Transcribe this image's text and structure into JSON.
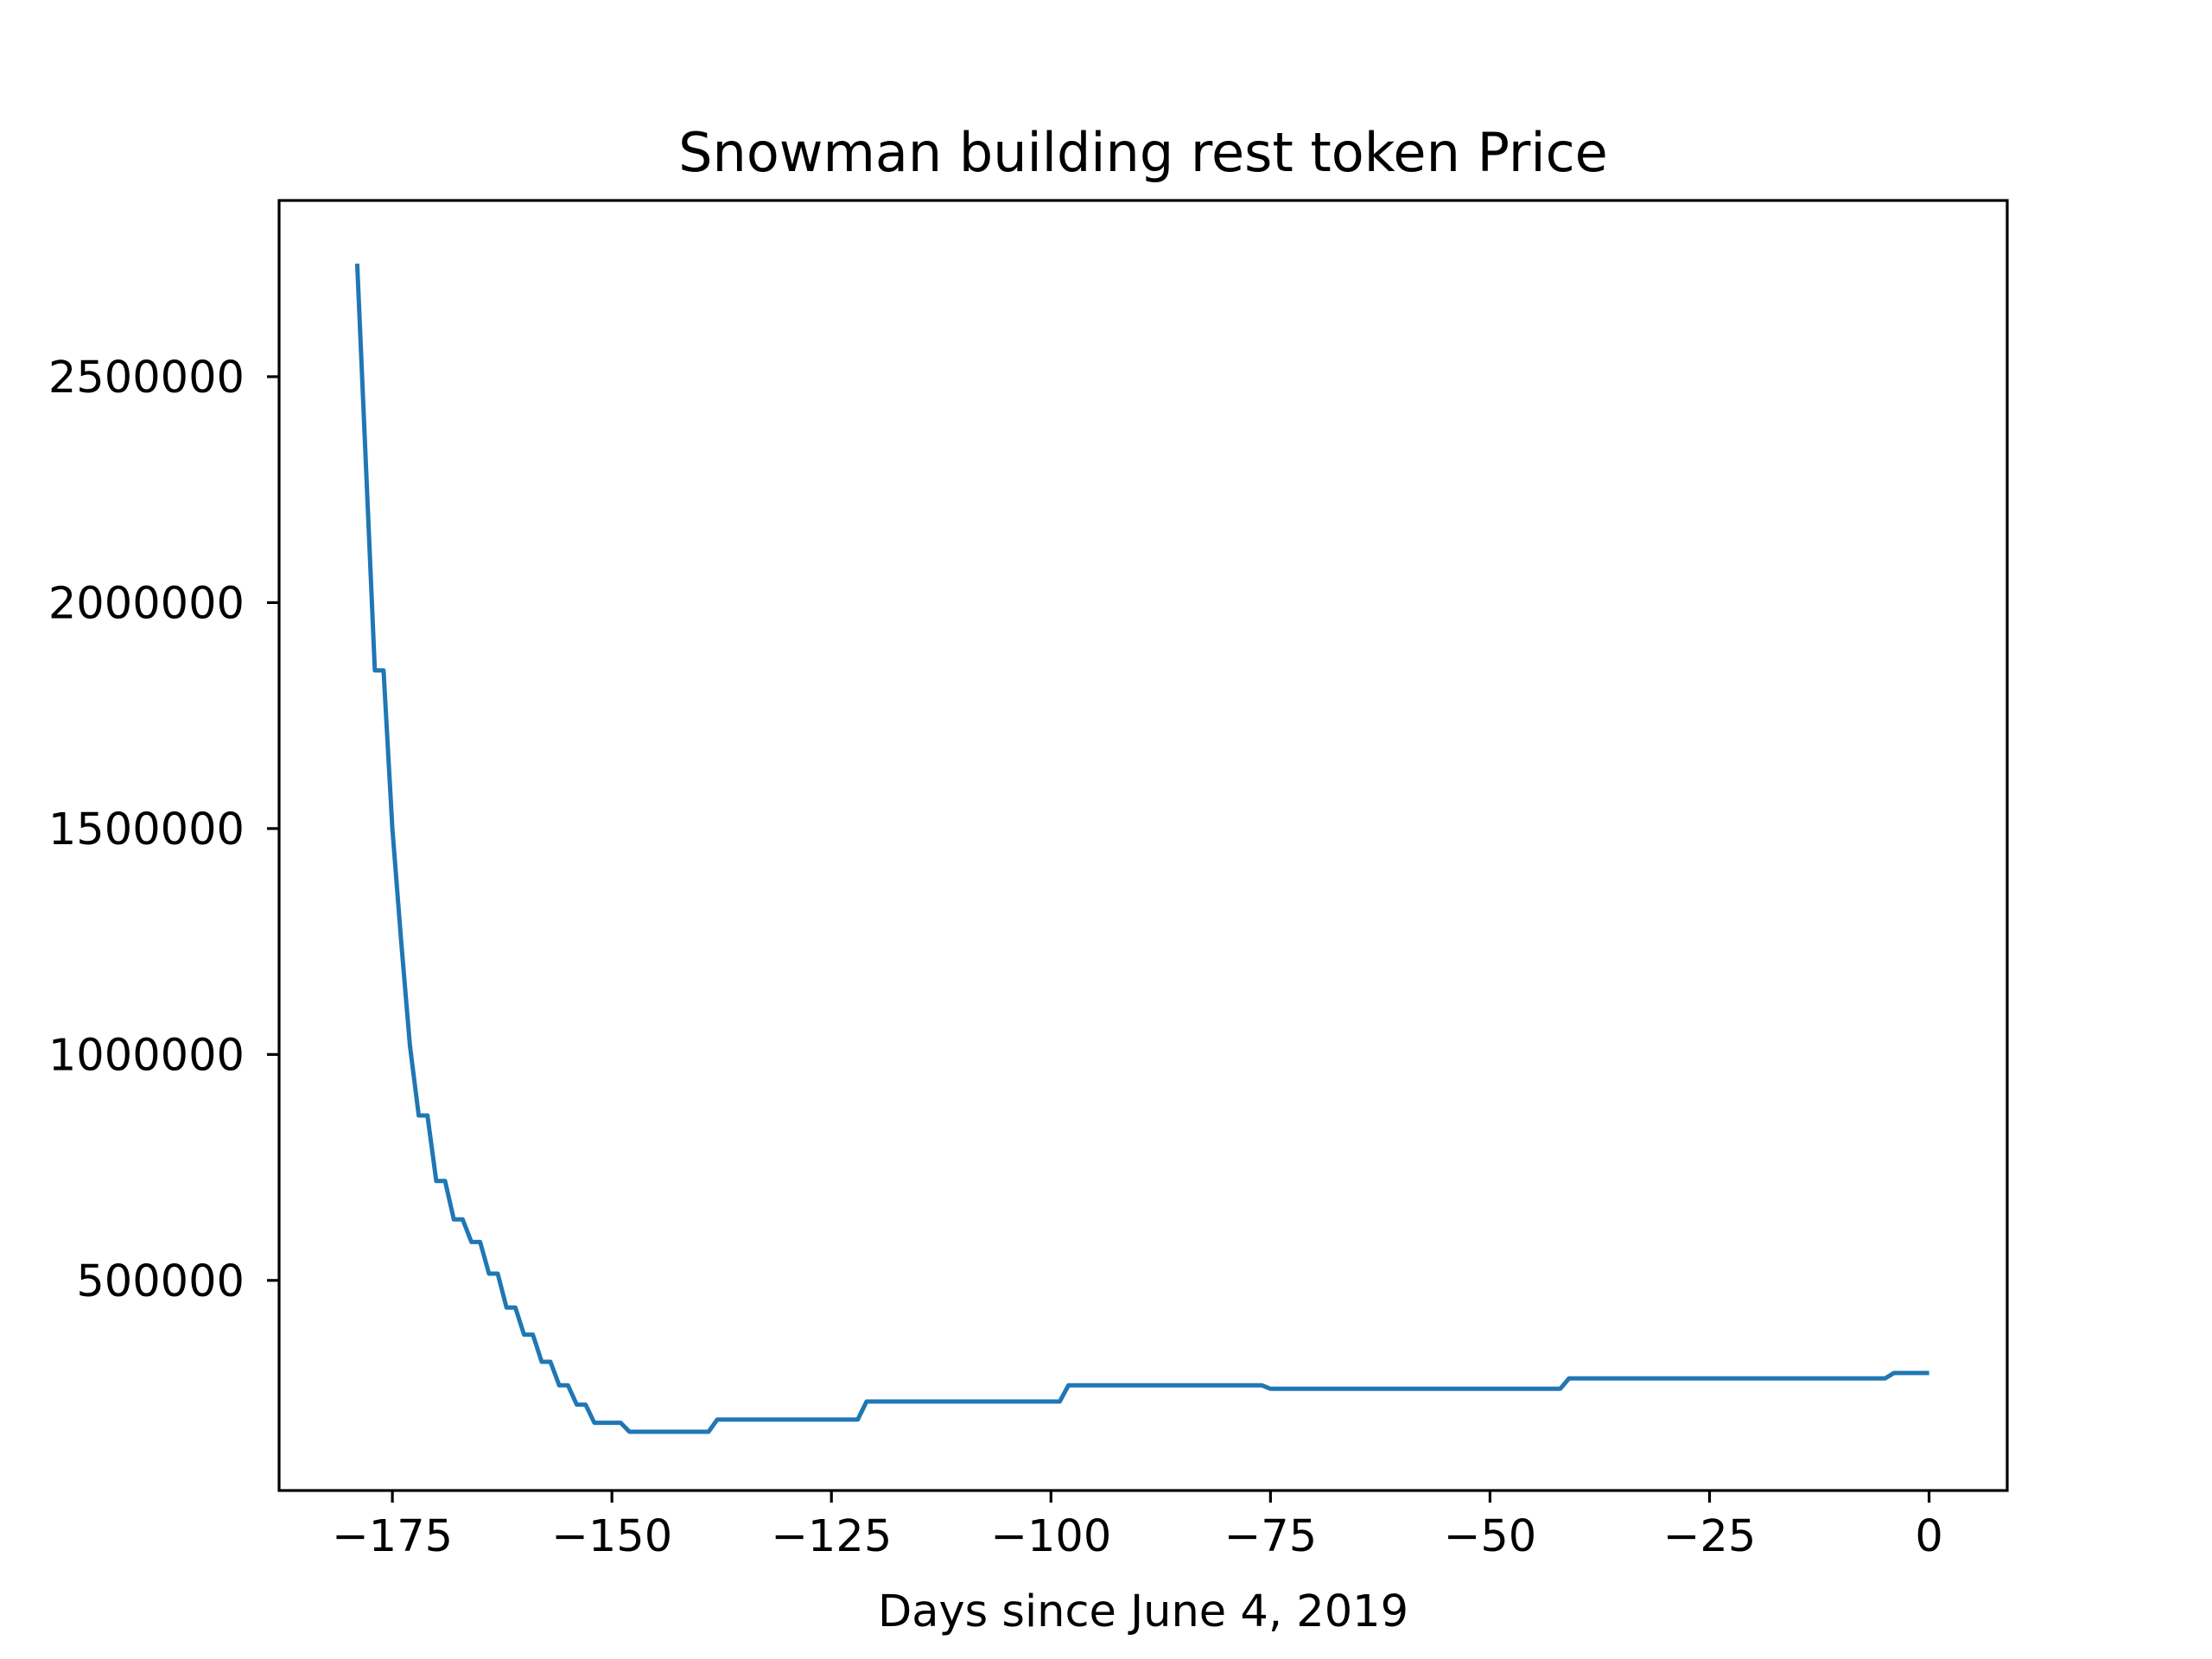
{
  "chart_data": {
    "type": "line",
    "title": "Snowman building rest token Price",
    "xlabel": "Days since June 4, 2019",
    "ylabel": "",
    "xlim": [
      -187.9,
      8.9
    ],
    "ylim": [
      35000,
      2890000
    ],
    "xticks": [
      -175,
      -150,
      -125,
      -100,
      -75,
      -50,
      -25,
      0
    ],
    "xtick_labels": [
      "−175",
      "−150",
      "−125",
      "−100",
      "−75",
      "−50",
      "−25",
      "0"
    ],
    "yticks": [
      500000,
      1000000,
      1500000,
      2000000,
      2500000
    ],
    "ytick_labels": [
      "500000",
      "1000000",
      "1500000",
      "2000000",
      "2500000"
    ],
    "grid": false,
    "legend": "none",
    "series": [
      {
        "color": "#1f77b4",
        "x": [
          -179,
          -178,
          -177,
          -176,
          -175,
          -174,
          -173,
          -172,
          -171,
          -170,
          -169,
          -168,
          -167,
          -166,
          -165,
          -164,
          -163,
          -162,
          -161,
          -160,
          -159,
          -158,
          -157,
          -156,
          -155,
          -154,
          -153,
          -152,
          -151,
          -150,
          -149,
          -148,
          -147,
          -146,
          -145,
          -144,
          -143,
          -142,
          -141,
          -140,
          -139,
          -138,
          -137,
          -136,
          -135,
          -134,
          -133,
          -132,
          -131,
          -130,
          -129,
          -128,
          -127,
          -126,
          -125,
          -124,
          -123,
          -122,
          -121,
          -120,
          -119,
          -118,
          -117,
          -116,
          -115,
          -114,
          -113,
          -112,
          -111,
          -110,
          -109,
          -108,
          -107,
          -106,
          -105,
          -104,
          -103,
          -102,
          -101,
          -100,
          -99,
          -98,
          -97,
          -96,
          -95,
          -94,
          -93,
          -92,
          -91,
          -90,
          -89,
          -88,
          -87,
          -86,
          -85,
          -84,
          -83,
          -82,
          -81,
          -80,
          -79,
          -78,
          -77,
          -76,
          -75,
          -74,
          -73,
          -72,
          -71,
          -70,
          -69,
          -68,
          -67,
          -66,
          -65,
          -64,
          -63,
          -62,
          -61,
          -60,
          -59,
          -58,
          -57,
          -56,
          -55,
          -54,
          -53,
          -52,
          -51,
          -50,
          -49,
          -48,
          -47,
          -46,
          -45,
          -44,
          -43,
          -42,
          -41,
          -40,
          -39,
          -38,
          -37,
          -36,
          -35,
          -34,
          -33,
          -32,
          -31,
          -30,
          -29,
          -28,
          -27,
          -26,
          -25,
          -24,
          -23,
          -22,
          -21,
          -20,
          -19,
          -18,
          -17,
          -16,
          -15,
          -14,
          -13,
          -12,
          -11,
          -10,
          -9,
          -8,
          -7,
          -6,
          -5,
          -4,
          -3,
          -2,
          -1,
          0
        ],
        "y": [
          2750000,
          2300000,
          1850000,
          1850000,
          1500000,
          1250000,
          1020000,
          865000,
          865000,
          720000,
          720000,
          635000,
          635000,
          585000,
          585000,
          515000,
          515000,
          440000,
          440000,
          380000,
          380000,
          320000,
          320000,
          268000,
          268000,
          225000,
          225000,
          185000,
          185000,
          185000,
          185000,
          165000,
          165000,
          165000,
          165000,
          165000,
          165000,
          165000,
          165000,
          165000,
          165000,
          192000,
          192000,
          192000,
          192000,
          192000,
          192000,
          192000,
          192000,
          192000,
          192000,
          192000,
          192000,
          192000,
          192000,
          192000,
          192000,
          192000,
          232000,
          232000,
          232000,
          232000,
          232000,
          232000,
          232000,
          232000,
          232000,
          232000,
          232000,
          232000,
          232000,
          232000,
          232000,
          232000,
          232000,
          232000,
          232000,
          232000,
          232000,
          232000,
          232000,
          268000,
          268000,
          268000,
          268000,
          268000,
          268000,
          268000,
          268000,
          268000,
          268000,
          268000,
          268000,
          268000,
          268000,
          268000,
          268000,
          268000,
          268000,
          268000,
          268000,
          268000,
          268000,
          268000,
          260000,
          260000,
          260000,
          260000,
          260000,
          260000,
          260000,
          260000,
          260000,
          260000,
          260000,
          260000,
          260000,
          260000,
          260000,
          260000,
          260000,
          260000,
          260000,
          260000,
          260000,
          260000,
          260000,
          260000,
          260000,
          260000,
          260000,
          260000,
          260000,
          260000,
          260000,
          260000,
          260000,
          260000,
          283000,
          283000,
          283000,
          283000,
          283000,
          283000,
          283000,
          283000,
          283000,
          283000,
          283000,
          283000,
          283000,
          283000,
          283000,
          283000,
          283000,
          283000,
          283000,
          283000,
          283000,
          283000,
          283000,
          283000,
          283000,
          283000,
          283000,
          283000,
          283000,
          283000,
          283000,
          283000,
          283000,
          283000,
          283000,
          283000,
          283000,
          295000,
          295000,
          295000,
          295000,
          295000
        ]
      }
    ]
  }
}
